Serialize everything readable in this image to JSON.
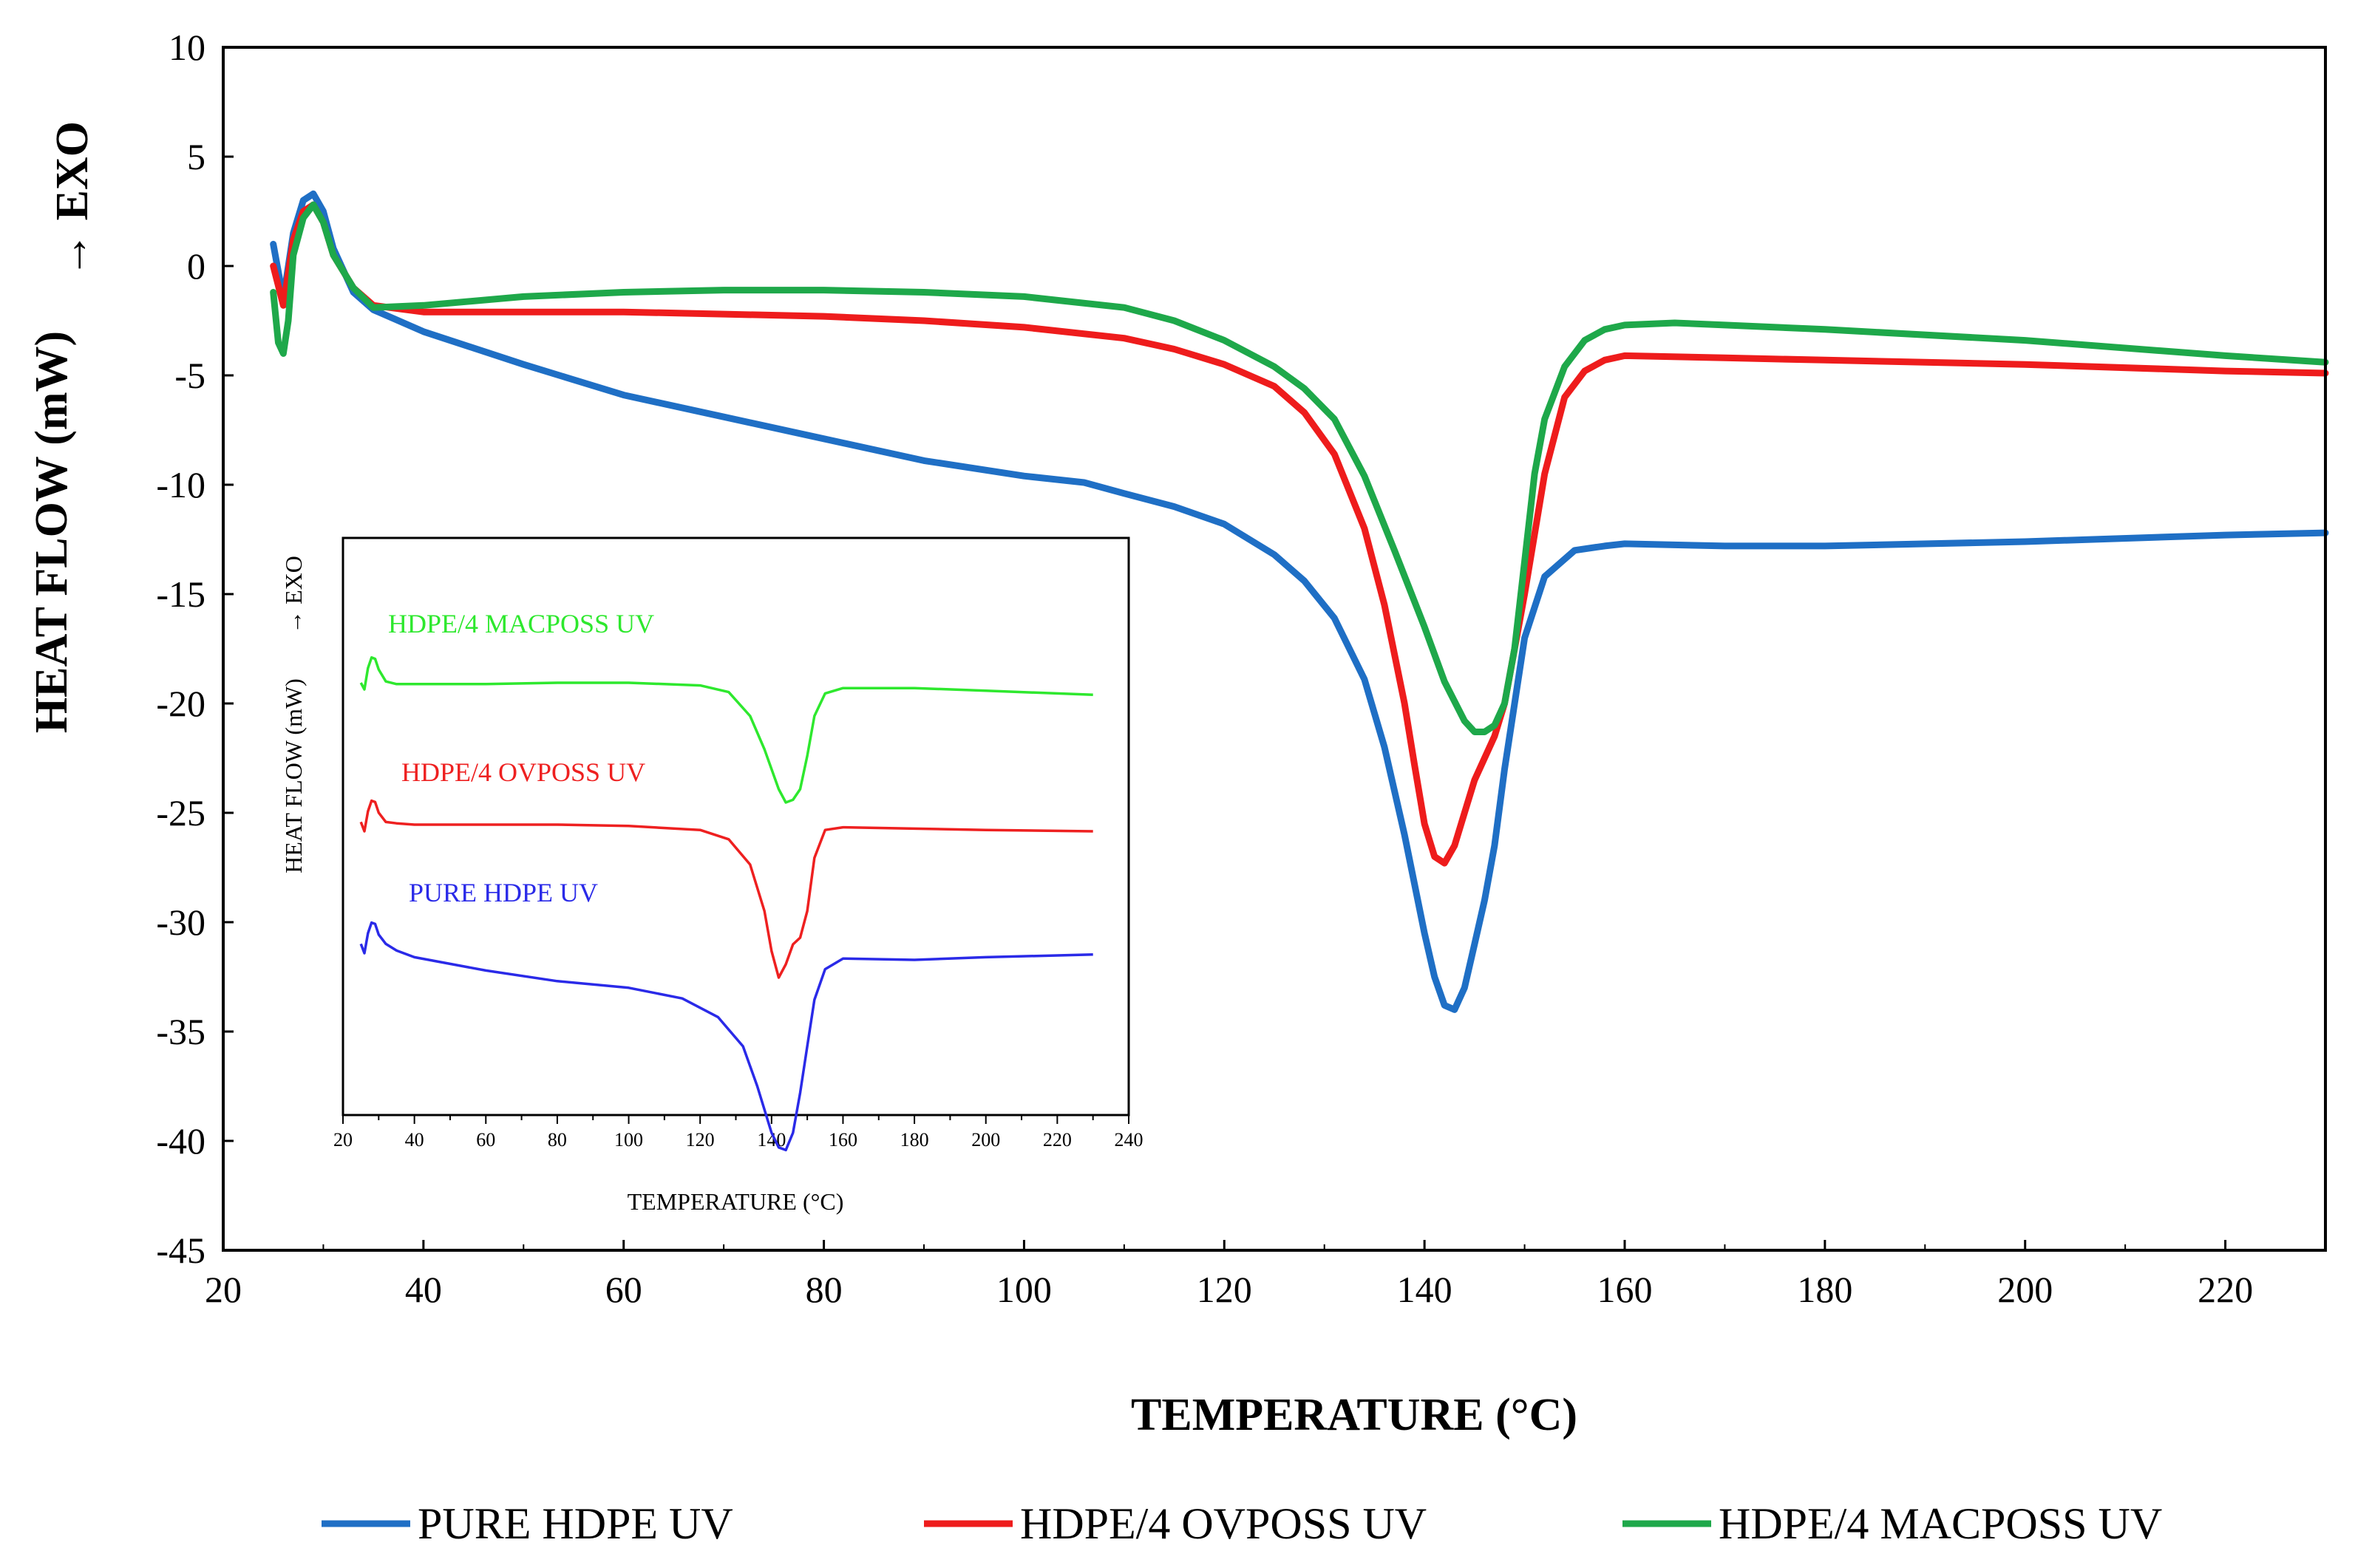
{
  "chart_data": {
    "type": "line",
    "title": "",
    "xlabel": "TEMPERATURE (°C)",
    "ylabel": "HEAT FLOW (mW)",
    "ylabel_arrow": "→ EXO",
    "xlim": [
      20,
      230
    ],
    "ylim": [
      -45,
      10
    ],
    "xticks": [
      20,
      40,
      60,
      80,
      100,
      120,
      140,
      160,
      180,
      200,
      220
    ],
    "yticks": [
      10,
      5,
      0,
      -5,
      -10,
      -15,
      -20,
      -25,
      -30,
      -35,
      -40,
      -45
    ],
    "legend_position": "bottom",
    "series": [
      {
        "name": "PURE HDPE UV",
        "color": "#1f6fc5",
        "x": [
          25,
          26,
          27,
          28,
          29,
          30,
          31,
          33,
          35,
          40,
          50,
          60,
          70,
          80,
          90,
          100,
          106,
          110,
          115,
          120,
          125,
          128,
          131,
          134,
          136,
          138,
          140,
          141,
          142,
          143,
          144,
          145,
          146,
          147,
          148,
          150,
          152,
          155,
          158,
          160,
          170,
          180,
          200,
          220,
          230
        ],
        "y": [
          1,
          -1.5,
          1.5,
          3,
          3.3,
          2.5,
          0.8,
          -1.2,
          -2,
          -3,
          -4.5,
          -5.9,
          -6.9,
          -7.9,
          -8.9,
          -9.6,
          -9.9,
          -10.4,
          -11,
          -11.8,
          -13.2,
          -14.4,
          -16.1,
          -18.9,
          -22,
          -26,
          -30.5,
          -32.5,
          -33.8,
          -34,
          -33,
          -31,
          -29,
          -26.5,
          -23,
          -17,
          -14.2,
          -13,
          -12.8,
          -12.7,
          -12.8,
          -12.8,
          -12.6,
          -12.3,
          -12.2
        ]
      },
      {
        "name": "HDPE/4 OVPOSS UV",
        "color": "#ee1c1c",
        "x": [
          25,
          26,
          27,
          28,
          29,
          30,
          31,
          33,
          35,
          40,
          50,
          60,
          70,
          80,
          90,
          100,
          110,
          115,
          120,
          125,
          128,
          131,
          134,
          136,
          138,
          139,
          140,
          141,
          142,
          143,
          144,
          145,
          146,
          147,
          148,
          150,
          152,
          154,
          156,
          158,
          160,
          170,
          180,
          200,
          220,
          230
        ],
        "y": [
          0,
          -1.8,
          1.2,
          2.5,
          2.8,
          2,
          0.5,
          -1,
          -1.8,
          -2.1,
          -2.1,
          -2.1,
          -2.2,
          -2.3,
          -2.5,
          -2.8,
          -3.3,
          -3.8,
          -4.5,
          -5.5,
          -6.7,
          -8.6,
          -12,
          -15.5,
          -20,
          -22.8,
          -25.5,
          -27,
          -27.3,
          -26.5,
          -25,
          -23.5,
          -22.5,
          -21.5,
          -20,
          -15,
          -9.5,
          -6,
          -4.8,
          -4.3,
          -4.1,
          -4.2,
          -4.3,
          -4.5,
          -4.8,
          -4.9
        ]
      },
      {
        "name": "HDPE/4 MACPOSS UV",
        "color": "#1ea84a",
        "x": [
          25,
          25.5,
          26,
          26.5,
          27,
          28,
          29,
          30,
          31,
          33,
          35,
          40,
          50,
          60,
          70,
          80,
          90,
          100,
          110,
          115,
          120,
          125,
          128,
          131,
          134,
          137,
          140,
          142,
          144,
          145,
          146,
          147,
          148,
          149,
          150,
          151,
          152,
          154,
          156,
          158,
          160,
          165,
          170,
          180,
          200,
          220,
          230
        ],
        "y": [
          -1.2,
          -3.5,
          -4,
          -2.5,
          0.5,
          2.2,
          2.8,
          2,
          0.5,
          -1,
          -1.9,
          -1.8,
          -1.4,
          -1.2,
          -1.1,
          -1.1,
          -1.2,
          -1.4,
          -1.9,
          -2.5,
          -3.4,
          -4.6,
          -5.6,
          -7,
          -9.6,
          -13,
          -16.5,
          -19,
          -20.8,
          -21.3,
          -21.3,
          -21,
          -20,
          -17.5,
          -13.5,
          -9.5,
          -7,
          -4.6,
          -3.4,
          -2.9,
          -2.7,
          -2.6,
          -2.7,
          -2.9,
          -3.4,
          -4.1,
          -4.4
        ]
      }
    ],
    "inset": {
      "xlabel": "TEMPERATURE (°C)",
      "ylabel": "HEAT FLOW (mW)",
      "ylabel_arrow": "→ EXO",
      "xlim": [
        20,
        240
      ],
      "xticks": [
        20,
        40,
        60,
        80,
        100,
        120,
        140,
        160,
        180,
        200,
        220,
        240
      ],
      "series": [
        {
          "name": "HDPE/4 MACPOSS UV",
          "color": "#2ee82e",
          "x": [
            25,
            26,
            27,
            28,
            29,
            30,
            32,
            35,
            40,
            60,
            80,
            100,
            120,
            128,
            134,
            138,
            142,
            144,
            146,
            148,
            150,
            152,
            155,
            160,
            180,
            200,
            230
          ],
          "y": [
            -0.5,
            -1,
            0.6,
            1.4,
            1.3,
            0.5,
            -0.4,
            -0.6,
            -0.6,
            -0.6,
            -0.5,
            -0.5,
            -0.7,
            -1.2,
            -3,
            -5.5,
            -8.5,
            -9.5,
            -9.3,
            -8.5,
            -6,
            -3,
            -1.3,
            -0.9,
            -0.9,
            -1.1,
            -1.4
          ]
        },
        {
          "name": "HDPE/4 OVPOSS UV",
          "color": "#ee2020",
          "x": [
            25,
            26,
            27,
            28,
            29,
            30,
            32,
            35,
            40,
            60,
            80,
            100,
            120,
            128,
            134,
            138,
            140,
            142,
            144,
            146,
            148,
            150,
            152,
            155,
            160,
            180,
            200,
            230
          ],
          "y": [
            -0.3,
            -1,
            0.5,
            1.3,
            1.2,
            0.4,
            -0.3,
            -0.4,
            -0.5,
            -0.5,
            -0.5,
            -0.6,
            -0.9,
            -1.6,
            -3.5,
            -7,
            -10,
            -12,
            -11,
            -9.5,
            -9,
            -7,
            -3,
            -0.9,
            -0.7,
            -0.8,
            -0.9,
            -1
          ]
        },
        {
          "name": "PURE HDPE UV",
          "color": "#2a2ae8",
          "x": [
            25,
            26,
            27,
            28,
            29,
            30,
            32,
            35,
            40,
            60,
            80,
            100,
            115,
            125,
            132,
            136,
            140,
            142,
            144,
            146,
            148,
            150,
            152,
            155,
            160,
            180,
            200,
            230
          ],
          "y": [
            -0.3,
            -1,
            0.5,
            1.3,
            1.2,
            0.4,
            -0.3,
            -0.8,
            -1.3,
            -2.3,
            -3.1,
            -3.6,
            -4.4,
            -5.8,
            -8,
            -11,
            -14.5,
            -15.6,
            -15.8,
            -14.5,
            -11.5,
            -8,
            -4.5,
            -2.2,
            -1.4,
            -1.5,
            -1.3,
            -1.1
          ]
        }
      ]
    }
  }
}
